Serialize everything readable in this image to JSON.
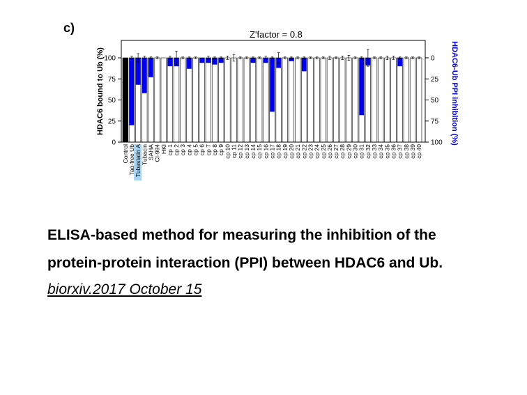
{
  "panel_label": "c)",
  "caption": {
    "line1": "ELISA-based method for measuring the inhibition of the",
    "line2": "protein-protein interaction (PPI) between HDAC6 and Ub.",
    "source": "biorxiv.2017 October 15"
  },
  "colors": {
    "control": "#000000",
    "inhibition": "#0000ee",
    "bar": "#ffffff",
    "highlight": "#a8d4f2"
  },
  "chart_data": {
    "type": "bar",
    "title": "Z'factor = 0.8",
    "ylabel": "HDAC6 bound to Ub (%)",
    "y2label": "HDAC6-Ub PPI inhibition (%)",
    "ylim": [
      0,
      100
    ],
    "y2lim": [
      100,
      0
    ],
    "yticks": [
      0,
      25,
      50,
      75,
      100
    ],
    "y2ticks": [
      0,
      25,
      50,
      75,
      100
    ],
    "highlighted_category": "Tubastatin A",
    "categories": [
      "Control",
      "Tag-free Ub",
      "Tubastatin A",
      "Tubacin",
      "SAHA",
      "CI-994",
      "HKI",
      "cp 1",
      "cp 2",
      "cp 3",
      "cp 4",
      "cp 5",
      "cp 6",
      "cp 7",
      "cp 8",
      "cp 9",
      "cp 10",
      "cp 11",
      "cp 12",
      "cp 13",
      "cp 14",
      "cp 15",
      "cp 16",
      "cp 17",
      "cp 18",
      "cp 19",
      "cp 20",
      "cp 21",
      "cp 22",
      "cp 23",
      "cp 24",
      "cp 25",
      "cp 26",
      "cp 27",
      "cp 28",
      "cp 29",
      "cp 30",
      "cp 31",
      "cp 32",
      "cp 33",
      "cp 34",
      "cp 35",
      "cp 36",
      "cp 37",
      "cp 38",
      "cp 39",
      "cp 40"
    ],
    "series": [
      {
        "values": [
          100,
          100,
          100,
          100,
          100,
          100,
          100,
          100,
          100,
          100,
          100,
          100,
          100,
          100,
          100,
          100,
          100,
          100,
          100,
          100,
          100,
          100,
          100,
          100,
          100,
          100,
          100,
          100,
          100,
          100,
          100,
          100,
          100,
          100,
          100,
          100,
          100,
          100,
          100,
          100,
          100,
          100,
          100,
          100,
          100,
          100,
          100
        ],
        "errors": [
          0,
          2,
          5,
          2,
          1,
          1,
          0,
          2,
          8,
          1,
          1,
          1,
          0,
          2,
          1,
          1,
          2,
          4,
          1,
          1,
          1,
          1,
          2,
          1,
          6,
          1,
          1,
          1,
          1,
          1,
          1,
          1,
          2,
          1,
          2,
          3,
          1,
          1,
          10,
          1,
          1,
          2,
          2,
          1,
          1,
          1,
          1
        ]
      },
      {
        "values": [
          0,
          80,
          32,
          42,
          23,
          0,
          0,
          10,
          10,
          0,
          13,
          0,
          6,
          6,
          8,
          6,
          0,
          0,
          0,
          0,
          6,
          0,
          6,
          64,
          12,
          0,
          4,
          0,
          16,
          0,
          0,
          0,
          0,
          0,
          0,
          0,
          0,
          68,
          9,
          0,
          0,
          0,
          0,
          10,
          0,
          0,
          0
        ]
      }
    ]
  }
}
